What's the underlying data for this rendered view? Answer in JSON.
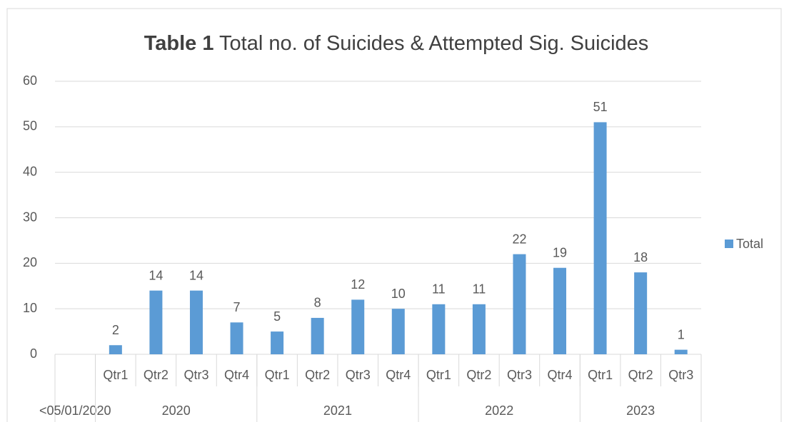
{
  "chart_data": {
    "type": "bar",
    "title": {
      "bold": "Table 1",
      "text": "Total no. of Suicides & Attempted Sig. Suicides"
    },
    "categories": [
      null,
      "Qtr1",
      "Qtr2",
      "Qtr3",
      "Qtr4",
      "Qtr1",
      "Qtr2",
      "Qtr3",
      "Qtr4",
      "Qtr1",
      "Qtr2",
      "Qtr3",
      "Qtr4",
      "Qtr1",
      "Qtr2",
      "Qtr3"
    ],
    "groups": [
      {
        "label": "<05/01/2020",
        "count": 1
      },
      {
        "label": "2020",
        "count": 4
      },
      {
        "label": "2021",
        "count": 4
      },
      {
        "label": "2022",
        "count": 4
      },
      {
        "label": "2023",
        "count": 3
      }
    ],
    "series": [
      {
        "name": "Total",
        "color": "#5b9bd5",
        "values": [
          null,
          2,
          14,
          14,
          7,
          5,
          8,
          12,
          10,
          11,
          11,
          22,
          19,
          51,
          18,
          1
        ]
      }
    ],
    "ylim": [
      0,
      60
    ],
    "yticks": [
      0,
      10,
      20,
      30,
      40,
      50,
      60
    ],
    "grid": true,
    "legend": "right",
    "data_labels": true
  }
}
